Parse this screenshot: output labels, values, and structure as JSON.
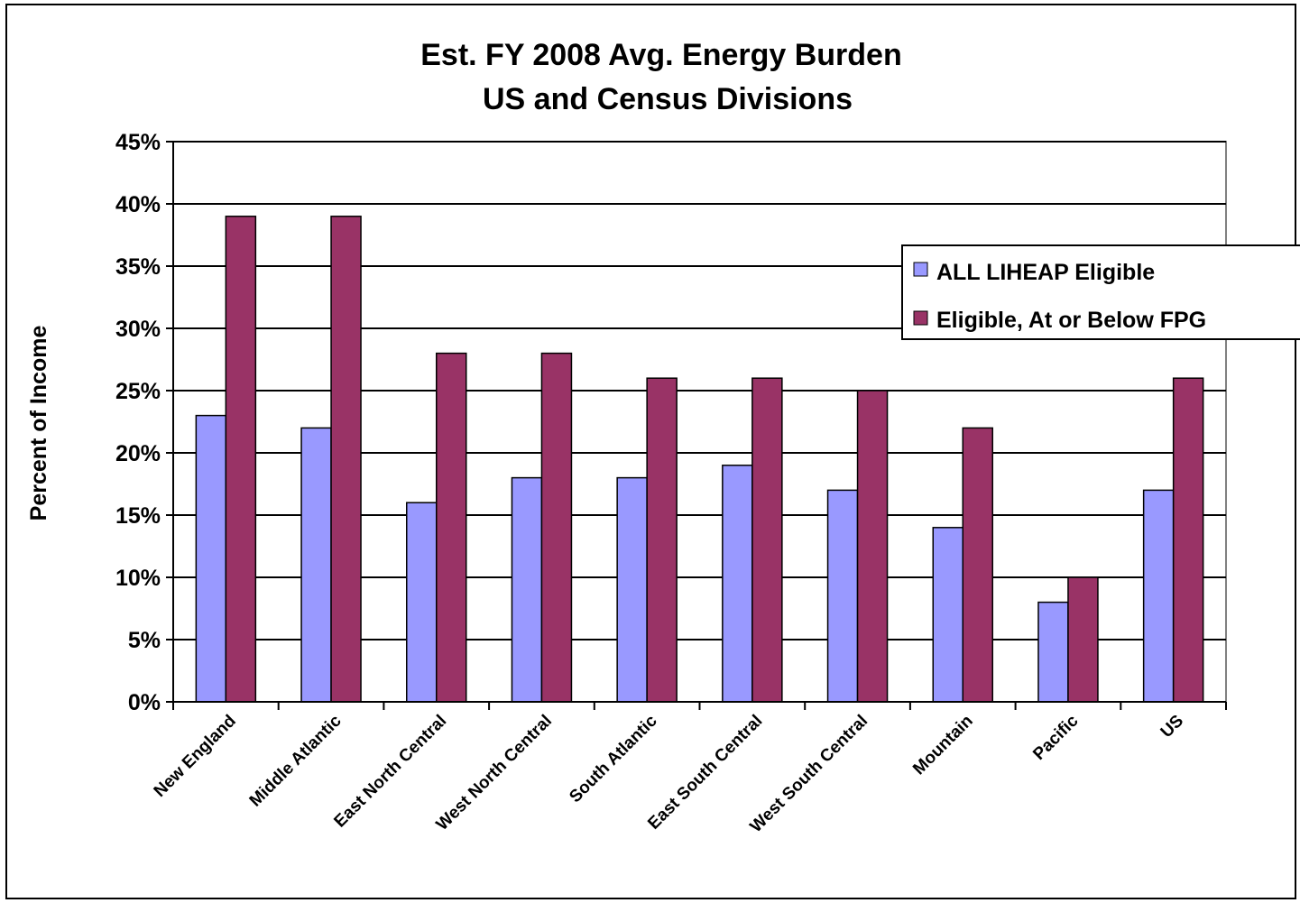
{
  "chart_data": {
    "type": "bar",
    "title": "Est.  FY 2008 Avg. Energy Burden",
    "subtitle": "US and Census Divisions",
    "ylabel": "Percent of Income",
    "xlabel": "",
    "ylim": [
      0,
      45
    ],
    "yticks": [
      "0%",
      "5%",
      "10%",
      "15%",
      "20%",
      "25%",
      "30%",
      "35%",
      "40%",
      "45%"
    ],
    "grid": true,
    "legend_position": "right",
    "categories": [
      "New England",
      "Middle Atlantic",
      "East North Central",
      "West North Central",
      "South Atlantic",
      "East South Central",
      "West South Central",
      "Mountain",
      "Pacific",
      "US"
    ],
    "series": [
      {
        "name": "ALL LIHEAP Eligible",
        "color": "#9999ff",
        "values": [
          23,
          22,
          16,
          18,
          18,
          19,
          17,
          14,
          8,
          17
        ]
      },
      {
        "name": "Eligible, At or Below FPG",
        "color": "#993366",
        "values": [
          39,
          39,
          28,
          28,
          26,
          26,
          25,
          22,
          10,
          26
        ]
      }
    ]
  }
}
